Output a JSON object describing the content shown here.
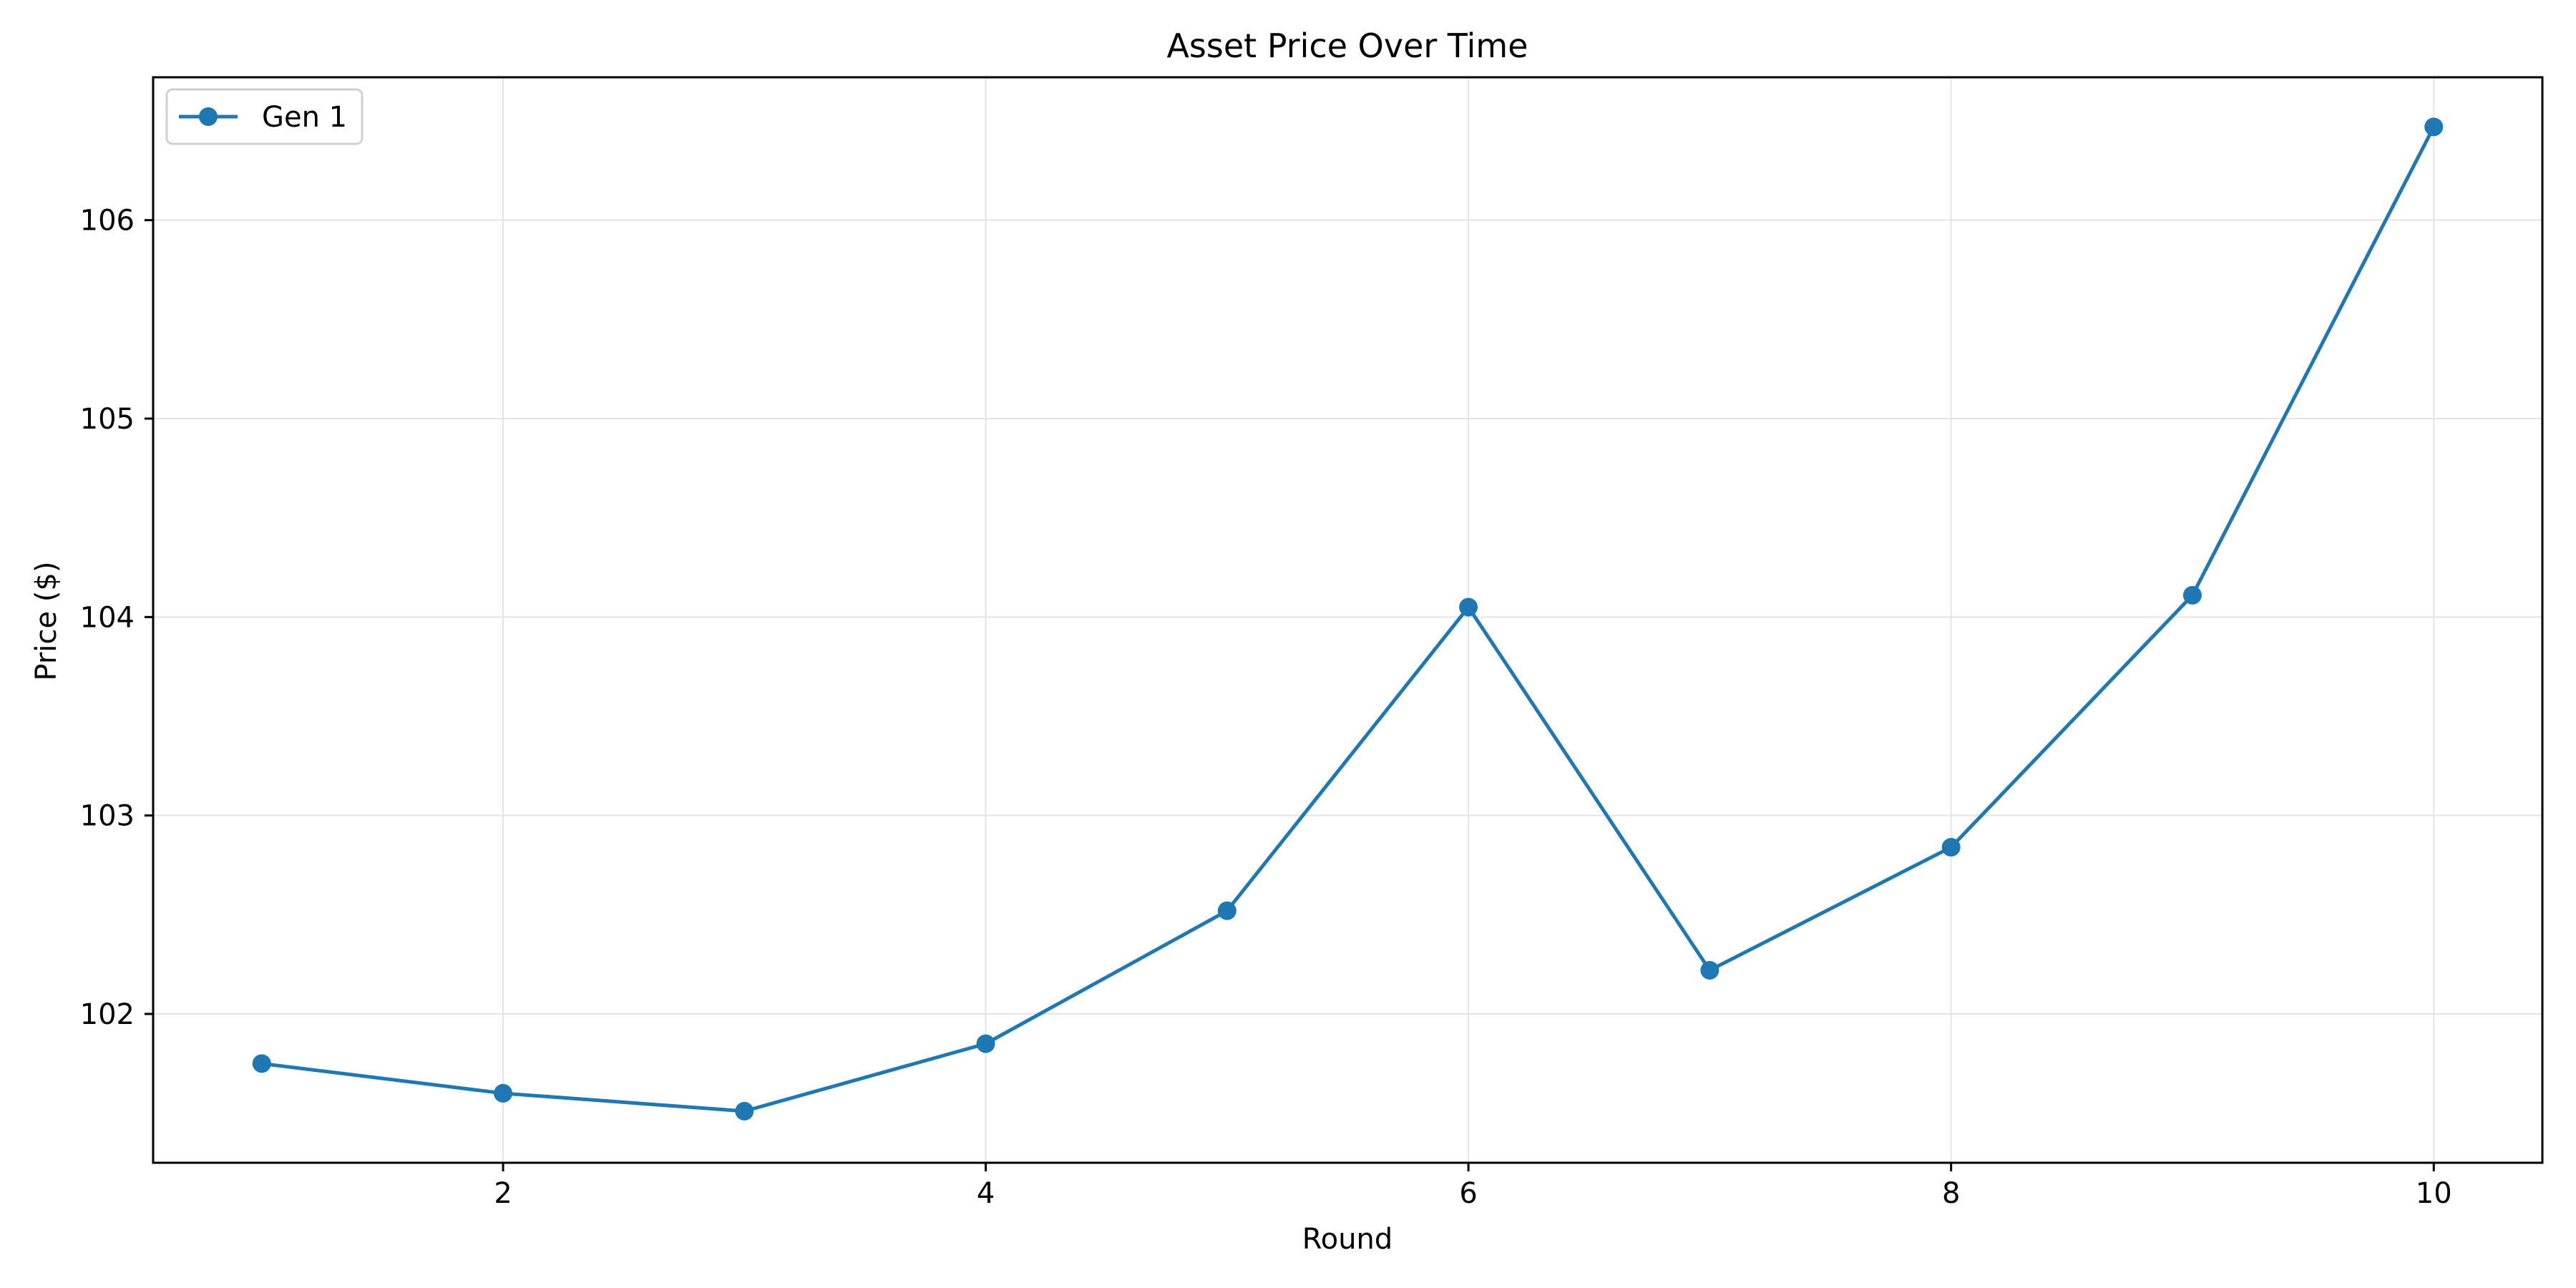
{
  "chart_data": {
    "type": "line",
    "title": "Asset Price Over Time",
    "xlabel": "Round",
    "ylabel": "Price ($)",
    "x": [
      1,
      2,
      3,
      4,
      5,
      6,
      7,
      8,
      9,
      10
    ],
    "series": [
      {
        "name": "Gen 1",
        "values": [
          101.75,
          101.6,
          101.51,
          101.85,
          102.52,
          104.05,
          102.22,
          102.84,
          104.11,
          106.47
        ]
      }
    ],
    "xlim": [
      0.55,
      10.45
    ],
    "ylim": [
      101.25,
      106.72
    ],
    "xticks": [
      2,
      4,
      6,
      8,
      10
    ],
    "yticks": [
      102,
      103,
      104,
      105,
      106
    ],
    "grid": true,
    "legend_position": "top-left",
    "colors": {
      "series": "#1f77b4",
      "grid": "#e5e5e5",
      "axes": "#000000"
    }
  }
}
